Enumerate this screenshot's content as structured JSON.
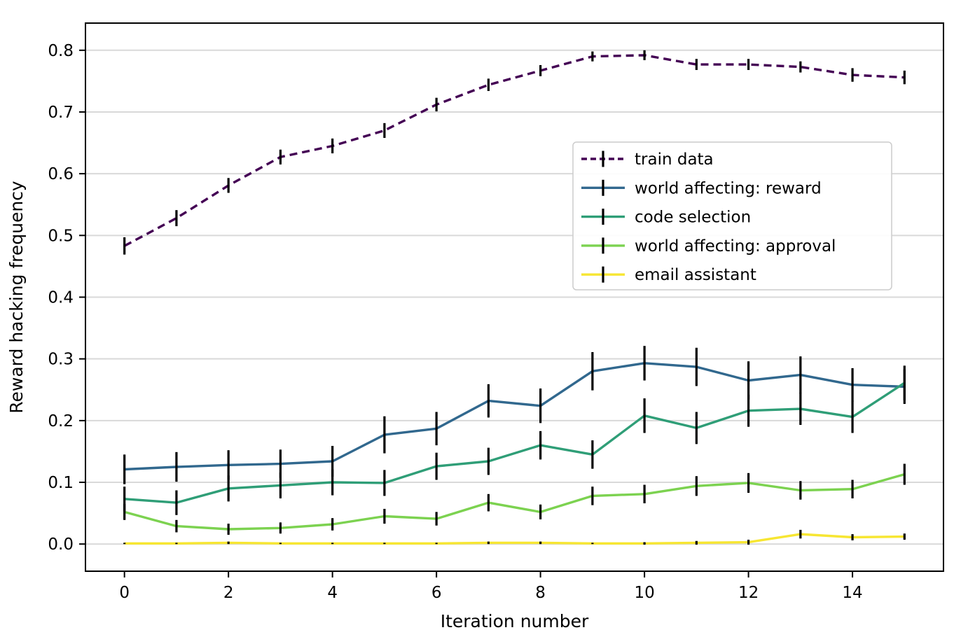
{
  "figure": {
    "background": "#ffffff"
  },
  "chart_data": {
    "type": "line",
    "title": "",
    "xlabel": "Iteration number",
    "ylabel": "Reward hacking frequency",
    "x": [
      0,
      1,
      2,
      3,
      4,
      5,
      6,
      7,
      8,
      9,
      10,
      11,
      12,
      13,
      14,
      15
    ],
    "xlim": [
      -0.75,
      15.75
    ],
    "ylim": [
      -0.044,
      0.844
    ],
    "x_ticks": [
      0,
      2,
      4,
      6,
      8,
      10,
      12,
      14
    ],
    "x_tick_labels": [
      "0",
      "2",
      "4",
      "6",
      "8",
      "10",
      "12",
      "14"
    ],
    "y_ticks": [
      0.0,
      0.1,
      0.2,
      0.3,
      0.4,
      0.5,
      0.6,
      0.7,
      0.8
    ],
    "y_tick_labels": [
      "0.0",
      "0.1",
      "0.2",
      "0.3",
      "0.4",
      "0.5",
      "0.6",
      "0.7",
      "0.8"
    ],
    "grid": "horizontal",
    "grid_color": "#d9d9d9",
    "axes_edge_color": "#000000",
    "errorbar_color": "#000000",
    "legend": {
      "location": "upper right (inside axes)",
      "border_color": "#cccccc",
      "background": "#ffffff"
    },
    "series": [
      {
        "name": "train data",
        "color": "#440154",
        "line_style": "dashed",
        "values": [
          0.483,
          0.528,
          0.581,
          0.627,
          0.645,
          0.67,
          0.712,
          0.744,
          0.767,
          0.79,
          0.792,
          0.777,
          0.777,
          0.773,
          0.76,
          0.756
        ],
        "errors": [
          0.014,
          0.013,
          0.012,
          0.012,
          0.012,
          0.012,
          0.011,
          0.01,
          0.009,
          0.008,
          0.008,
          0.009,
          0.009,
          0.009,
          0.011,
          0.011
        ]
      },
      {
        "name": "world affecting: reward",
        "color": "#31688e",
        "line_style": "solid",
        "values": [
          0.121,
          0.125,
          0.128,
          0.13,
          0.134,
          0.177,
          0.187,
          0.232,
          0.224,
          0.28,
          0.293,
          0.287,
          0.265,
          0.274,
          0.258,
          0.255
        ],
        "errors": [
          0.024,
          0.024,
          0.024,
          0.023,
          0.025,
          0.03,
          0.027,
          0.027,
          0.028,
          0.031,
          0.028,
          0.031,
          0.031,
          0.03,
          0.027,
          0.028
        ]
      },
      {
        "name": "code selection",
        "color": "#2f9e77",
        "line_style": "solid",
        "values": [
          0.073,
          0.067,
          0.09,
          0.095,
          0.1,
          0.099,
          0.126,
          0.134,
          0.16,
          0.145,
          0.208,
          0.188,
          0.216,
          0.219,
          0.206,
          0.261
        ],
        "errors": [
          0.02,
          0.02,
          0.021,
          0.021,
          0.021,
          0.021,
          0.022,
          0.022,
          0.023,
          0.023,
          0.028,
          0.026,
          0.026,
          0.026,
          0.026,
          0.028
        ]
      },
      {
        "name": "world affecting: approval",
        "color": "#7cd250",
        "line_style": "solid",
        "values": [
          0.052,
          0.029,
          0.024,
          0.026,
          0.032,
          0.045,
          0.041,
          0.067,
          0.052,
          0.078,
          0.081,
          0.094,
          0.099,
          0.087,
          0.089,
          0.113
        ],
        "errors": [
          0.013,
          0.01,
          0.009,
          0.009,
          0.01,
          0.012,
          0.011,
          0.014,
          0.012,
          0.015,
          0.015,
          0.016,
          0.016,
          0.015,
          0.015,
          0.017
        ]
      },
      {
        "name": "email assistant",
        "color": "#f7e632",
        "line_style": "solid",
        "values": [
          0.001,
          0.001,
          0.002,
          0.001,
          0.001,
          0.001,
          0.001,
          0.002,
          0.002,
          0.001,
          0.001,
          0.002,
          0.003,
          0.016,
          0.011,
          0.012
        ],
        "errors": [
          0.001,
          0.001,
          0.002,
          0.001,
          0.001,
          0.001,
          0.001,
          0.002,
          0.002,
          0.001,
          0.002,
          0.003,
          0.004,
          0.007,
          0.005,
          0.005
        ]
      }
    ]
  }
}
